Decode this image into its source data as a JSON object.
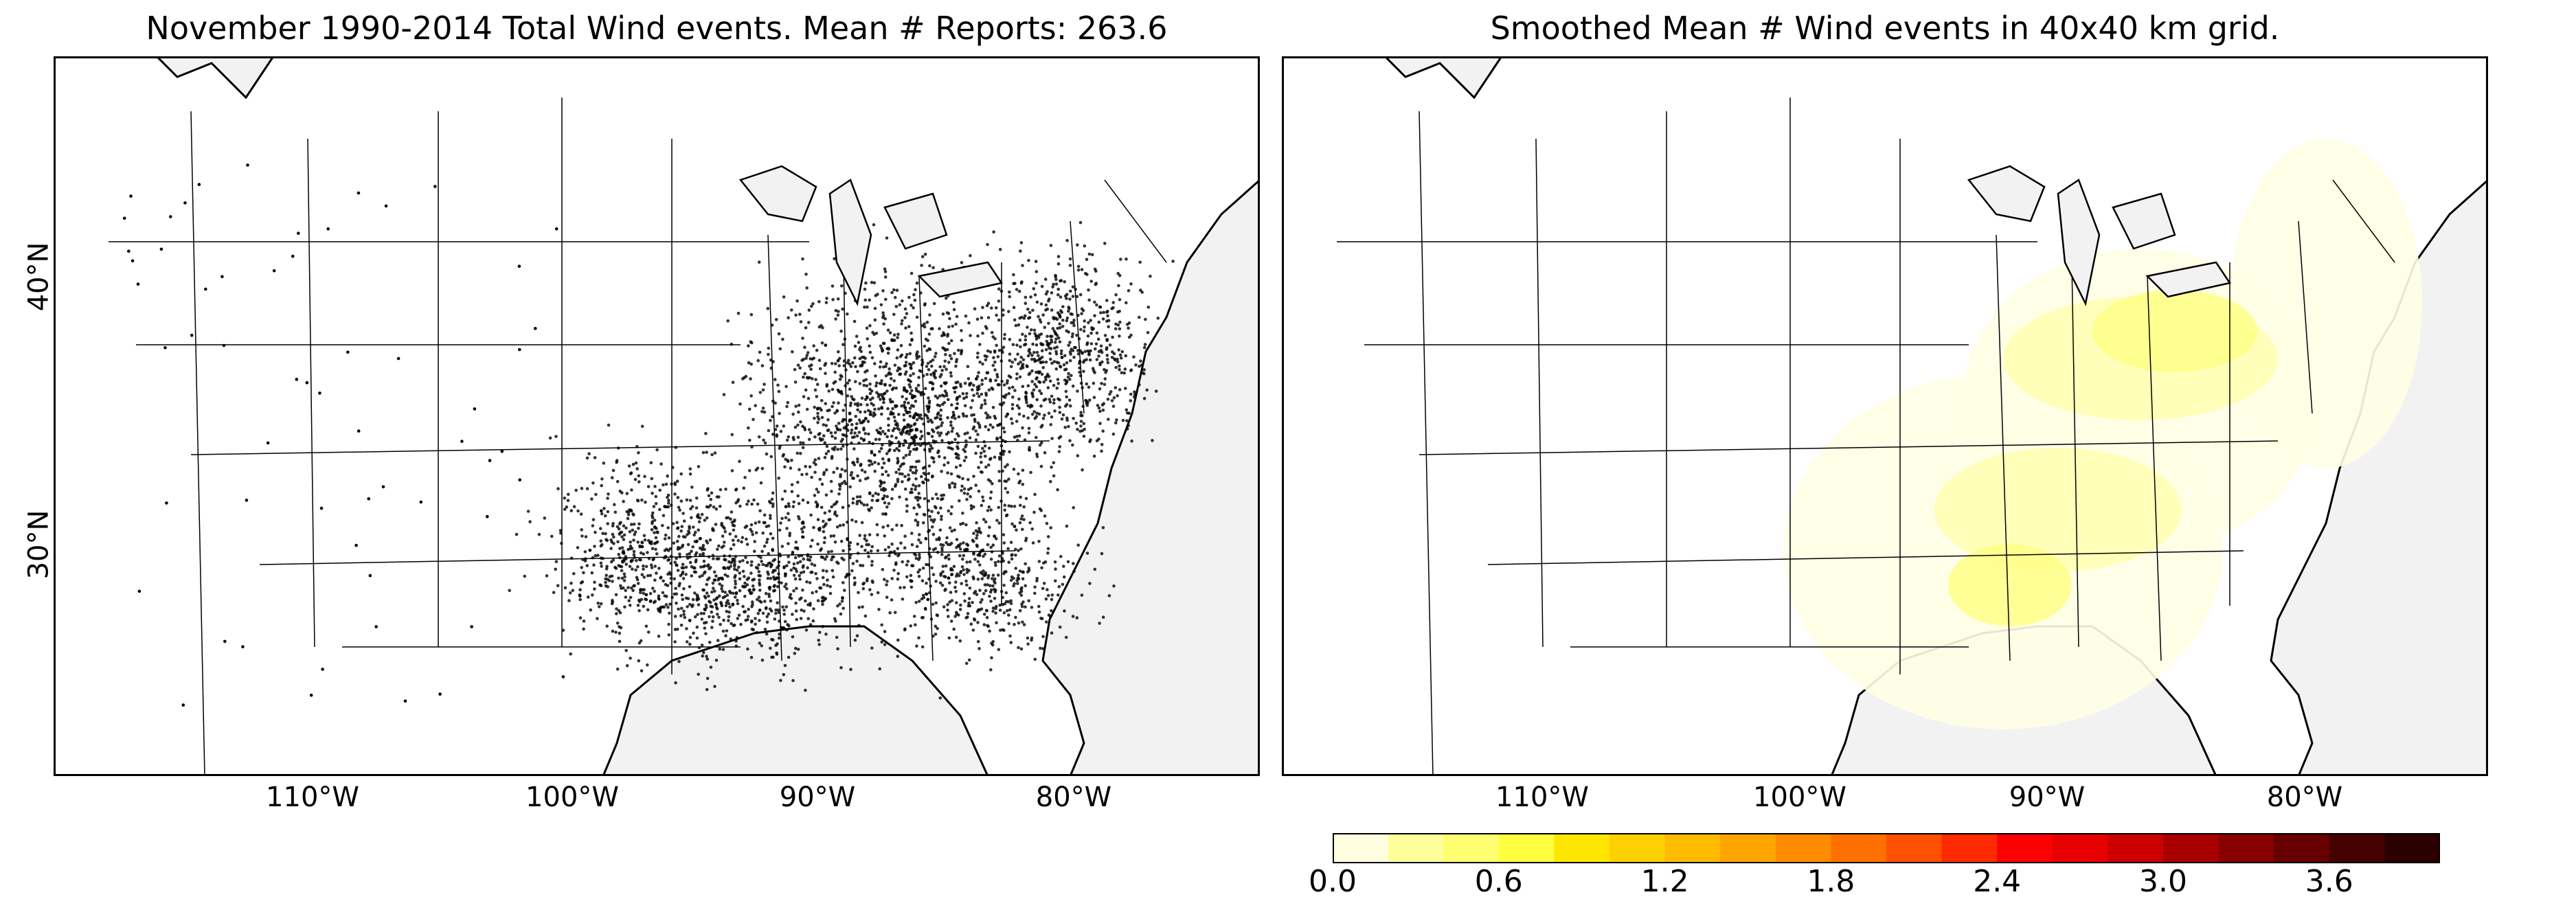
{
  "left_panel": {
    "title": "November 1990-2014 Total Wind events. Mean # Reports: 263.6",
    "lat_labels": [
      "40°N",
      "30°N"
    ],
    "lon_labels": [
      "110°W",
      "100°W",
      "90°W",
      "80°W"
    ]
  },
  "right_panel": {
    "title": "Smoothed Mean # Wind events in 40x40 km grid.",
    "lon_labels": [
      "110°W",
      "100°W",
      "90°W",
      "80°W"
    ]
  },
  "colorbar": {
    "tick_labels": [
      "0.0",
      "0.6",
      "1.2",
      "1.8",
      "2.4",
      "3.0",
      "3.6"
    ],
    "min": 0.0,
    "max": 4.0,
    "step": 0.2,
    "colors": [
      "#ffffe0",
      "#ffff9c",
      "#ffff70",
      "#ffff40",
      "#ffe600",
      "#ffd000",
      "#ffbb00",
      "#ffa500",
      "#ff8c00",
      "#ff7000",
      "#ff5000",
      "#ff2a00",
      "#ff0000",
      "#e60000",
      "#cc0000",
      "#a80000",
      "#880000",
      "#660000",
      "#450000",
      "#2a0000"
    ]
  },
  "colors": {
    "ocean": "#f2f2f2",
    "land": "#ffffff",
    "state_line": "#000000",
    "event_dot": "#000000",
    "smooth_low": "#ffffe6",
    "smooth_mid": "#ffffb4",
    "smooth_high": "#ffff8c"
  }
}
